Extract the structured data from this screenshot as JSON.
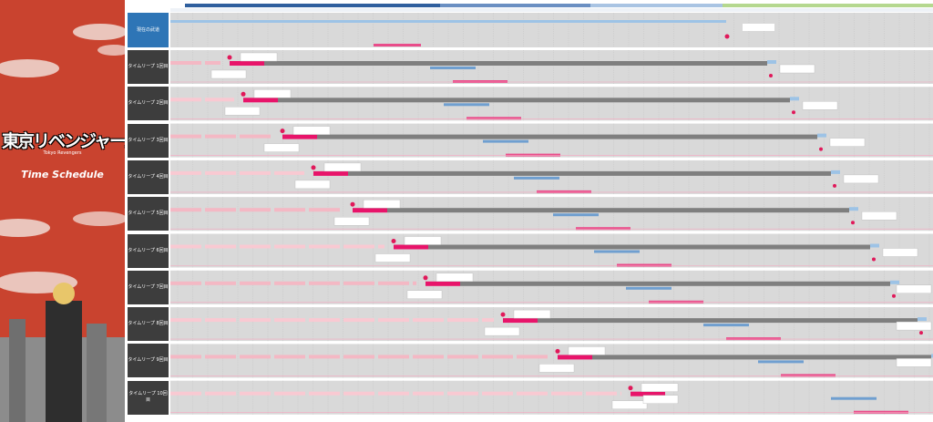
{
  "header": {
    "logo": "東京リベンジャーズ",
    "subtitle": "Tokyo Revengers",
    "title": "Time Schedule"
  },
  "rows": [
    {
      "label": "現在の武道"
    },
    {
      "label": "タイムリープ 1回目"
    },
    {
      "label": "タイムリープ 2回目"
    },
    {
      "label": "タイムリープ 3回目"
    },
    {
      "label": "タイムリープ 4回目"
    },
    {
      "label": "タイムリープ 5回目"
    },
    {
      "label": "タイムリープ 6回目"
    },
    {
      "label": "タイムリープ 7回目"
    },
    {
      "label": "タイムリープ 8回目"
    },
    {
      "label": "タイムリープ 9回目"
    },
    {
      "label": "タイムリープ 10回目"
    }
  ]
}
